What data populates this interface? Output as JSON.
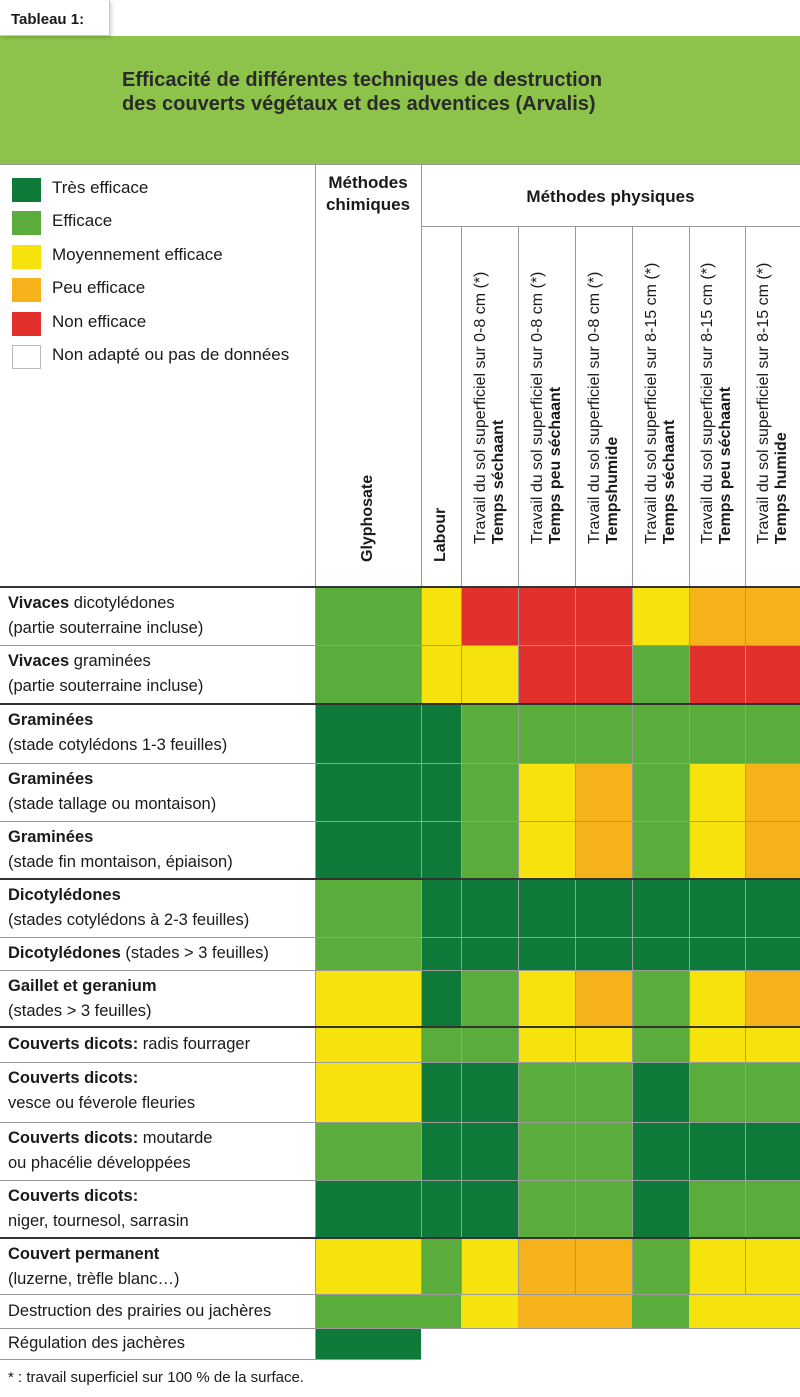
{
  "tag": "Tableau 1:",
  "title_line1": "Efficacité de différentes techniques de destruction",
  "title_line2": "des couverts végétaux et des adventices (Arvalis)",
  "legend": [
    {
      "key": "TE",
      "label": "Très efficace",
      "color": "#0e7a3a"
    },
    {
      "key": "E",
      "label": "Efficace",
      "color": "#5aad3a"
    },
    {
      "key": "M",
      "label": "Moyennement efficace",
      "color": "#f6e20c"
    },
    {
      "key": "P",
      "label": "Peu efficace",
      "color": "#f6b21a"
    },
    {
      "key": "N",
      "label": "Non efficace",
      "color": "#e2302c"
    },
    {
      "key": "O",
      "label": "Non adapté ou pas de données",
      "color": "#ffffff"
    }
  ],
  "header_chem": "Méthodes chimiques",
  "header_phys": "Méthodes physiques",
  "columns": [
    {
      "line1": "Glyphosate",
      "line2": ""
    },
    {
      "line1": "Labour",
      "line2": ""
    },
    {
      "line1": "Travail du sol superficiel sur 0-8 cm (*)",
      "line2": "Temps séchaant"
    },
    {
      "line1": "Travail du sol superficiel sur 0-8 cm (*)",
      "line2": "Temps peu séchaant"
    },
    {
      "line1": "Travail du sol superficiel sur 0-8 cm (*)",
      "line2": "Tempshumide"
    },
    {
      "line1": "Travail du sol superficiel sur 8-15 cm (*)",
      "line2": "Temps séchaant"
    },
    {
      "line1": "Travail du sol superficiel sur 8-15 cm (*)",
      "line2": "Temps peu séchaant"
    },
    {
      "line1": "Travail du sol superficiel sur 8-15 cm (*)",
      "line2": "Temps humide"
    }
  ],
  "rows": [
    {
      "bold": "Vivaces",
      "text": " dicotylédones",
      "line2": "(partie souterraine incluse)",
      "cells": [
        "E",
        "M",
        "N",
        "N",
        "N",
        "M",
        "P",
        "P"
      ]
    },
    {
      "bold": "Vivaces",
      "text": " graminées",
      "line2": " (partie souterraine incluse)",
      "cells": [
        "E",
        "M",
        "M",
        "N",
        "N",
        "E",
        "N",
        "N"
      ]
    },
    {
      "bold": "Graminées",
      "text": "",
      "line2": "(stade cotylédons 1-3 feuilles)",
      "cells": [
        "TE",
        "TE",
        "E",
        "E",
        "E",
        "E",
        "E",
        "E"
      ]
    },
    {
      "bold": "Graminées",
      "text": "",
      "line2": "(stade tallage ou montaison)",
      "cells": [
        "TE",
        "TE",
        "E",
        "M",
        "P",
        "E",
        "M",
        "P"
      ]
    },
    {
      "bold": "Graminées",
      "text": "",
      "line2": "(stade fin montaison, épiaison)",
      "cells": [
        "TE",
        "TE",
        "E",
        "M",
        "P",
        "E",
        "M",
        "P"
      ]
    },
    {
      "bold": "Dicotylédones",
      "text": "",
      "line2": "(stades cotylédons à 2-3 feuilles)",
      "cells": [
        "E",
        "TE",
        "TE",
        "TE",
        "TE",
        "TE",
        "TE",
        "TE"
      ]
    },
    {
      "bold": "Dicotylédones",
      "text": " (stades > 3 feuilles)",
      "line2": "",
      "cells": [
        "E",
        "TE",
        "TE",
        "TE",
        "TE",
        "TE",
        "TE",
        "TE"
      ]
    },
    {
      "bold": "Gaillet et geranium",
      "text": "",
      "line2": "(stades > 3 feuilles)",
      "cells": [
        "M",
        "TE",
        "E",
        "M",
        "P",
        "E",
        "M",
        "P"
      ]
    },
    {
      "bold": "Couverts dicots:",
      "text": " radis fourrager",
      "line2": "",
      "cells": [
        "M",
        "E",
        "E",
        "M",
        "M",
        "E",
        "M",
        "M"
      ]
    },
    {
      "bold": "Couverts dicots:",
      "text": "",
      "line2": "vesce ou féverole fleuries",
      "cells": [
        "M",
        "TE",
        "TE",
        "E",
        "E",
        "TE",
        "E",
        "E"
      ]
    },
    {
      "bold": "Couverts dicots:",
      "text": " moutarde",
      "line2": "ou phacélie développées",
      "cells": [
        "E",
        "TE",
        "TE",
        "E",
        "E",
        "TE",
        "TE",
        "TE"
      ]
    },
    {
      "bold": "Couverts dicots:",
      "text": "",
      "line2": "niger, tournesol, sarrasin",
      "cells": [
        "TE",
        "TE",
        "TE",
        "E",
        "E",
        "TE",
        "E",
        "E"
      ]
    },
    {
      "bold": "Couvert permanent",
      "text": "",
      "line2": "(luzerne, trèfle blanc…)",
      "cells": [
        "M",
        "E",
        "M",
        "P",
        "P",
        "E",
        "M",
        "M"
      ]
    },
    {
      "bold": "",
      "text": "Destruction des prairies ou jachères",
      "line2": "",
      "cells": [
        "E",
        "E",
        "M",
        "P",
        "P",
        "E",
        "M",
        "M"
      ]
    },
    {
      "bold": "",
      "text": "Régulation des jachères",
      "line2": "",
      "cells": [
        "TE",
        "O",
        "O",
        "O",
        "O",
        "O",
        "O",
        "O"
      ]
    }
  ],
  "footnote": "* : travail superficiel sur 100 % de la surface."
}
